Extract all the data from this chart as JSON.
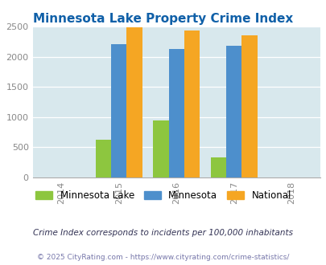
{
  "title": "Minnesota Lake Property Crime Index",
  "years": [
    2015,
    2016,
    2017
  ],
  "x_ticks": [
    2014,
    2015,
    2016,
    2017,
    2018
  ],
  "minnesota_lake": [
    625,
    940,
    330
  ],
  "minnesota": [
    2210,
    2130,
    2180
  ],
  "national": [
    2490,
    2440,
    2350
  ],
  "colors": {
    "minnesota_lake": "#8dc63f",
    "minnesota": "#4d8fcc",
    "national": "#f5a623"
  },
  "ylim": [
    0,
    2500
  ],
  "yticks": [
    0,
    500,
    1000,
    1500,
    2000,
    2500
  ],
  "background_color": "#d8e8ed",
  "title_color": "#1060a8",
  "bar_width": 0.27,
  "legend_labels": [
    "Minnesota Lake",
    "Minnesota",
    "National"
  ],
  "footnote1": "Crime Index corresponds to incidents per 100,000 inhabitants",
  "footnote2": "© 2025 CityRating.com - https://www.cityrating.com/crime-statistics/",
  "footnote1_color": "#333355",
  "footnote2_color": "#7777aa",
  "xlim": [
    2013.5,
    2018.5
  ]
}
